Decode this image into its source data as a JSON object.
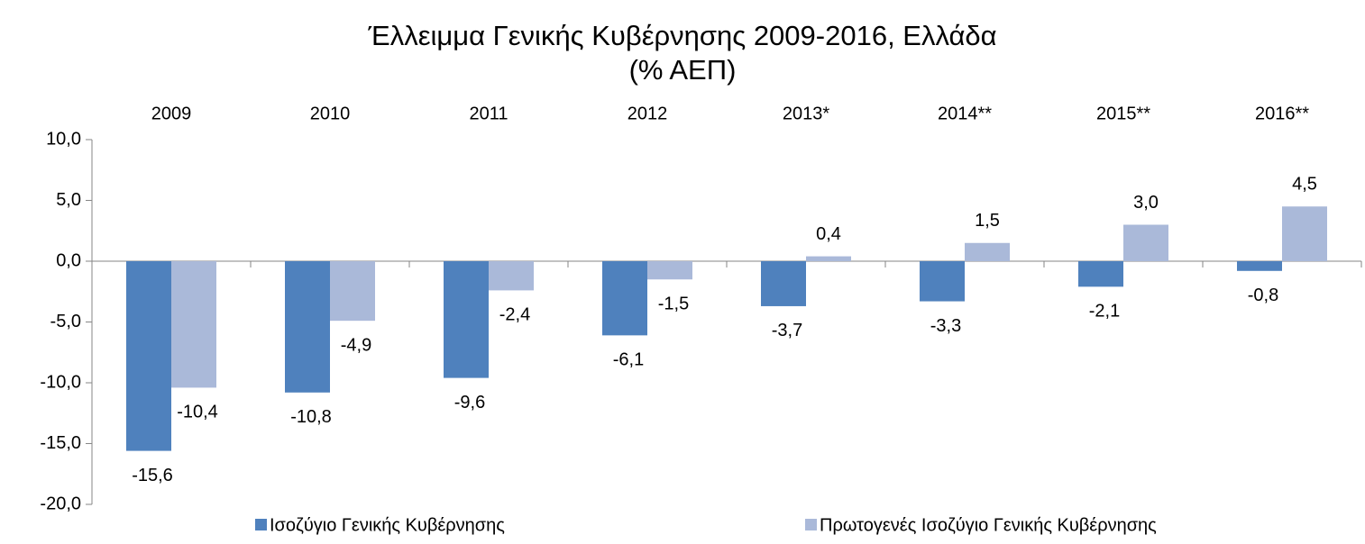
{
  "chart_data": {
    "type": "bar",
    "title": "Έλλειμμα Γενικής Κυβέρνησης 2009-2016, Ελλάδα",
    "subtitle": "(% ΑΕΠ)",
    "categories": [
      "2009",
      "2010",
      "2011",
      "2012",
      "2013*",
      "2014**",
      "2015**",
      "2016**"
    ],
    "series": [
      {
        "name": "Ισοζύγιο Γενικής Κυβέρνησης",
        "color": "#4f81bd",
        "values": [
          -15.6,
          -10.8,
          -9.6,
          -6.1,
          -3.7,
          -3.3,
          -2.1,
          -0.8
        ],
        "value_labels": [
          "-15,6",
          "-10,8",
          "-9,6",
          "-6,1",
          "-3,7",
          "-3,3",
          "-2,1",
          "-0,8"
        ]
      },
      {
        "name": "Πρωτογενές Ισοζύγιο Γενικής Κυβέρνησης",
        "color": "#aab9d9",
        "values": [
          -10.4,
          -4.9,
          -2.4,
          -1.5,
          0.4,
          1.5,
          3.0,
          4.5
        ],
        "value_labels": [
          "-10,4",
          "-4,9",
          "-2,4",
          "-1,5",
          "0,4",
          "1,5",
          "3,0",
          "4,5"
        ]
      }
    ],
    "ylim": [
      -20,
      10
    ],
    "yticks": [
      {
        "value": 10,
        "label": "10,0"
      },
      {
        "value": 5,
        "label": "5,0"
      },
      {
        "value": 0,
        "label": "0,0"
      },
      {
        "value": -5,
        "label": "-5,0"
      },
      {
        "value": -10,
        "label": "-10,0"
      },
      {
        "value": -15,
        "label": "-15,0"
      },
      {
        "value": -20,
        "label": "-20,0"
      }
    ],
    "legend": "bottom"
  }
}
